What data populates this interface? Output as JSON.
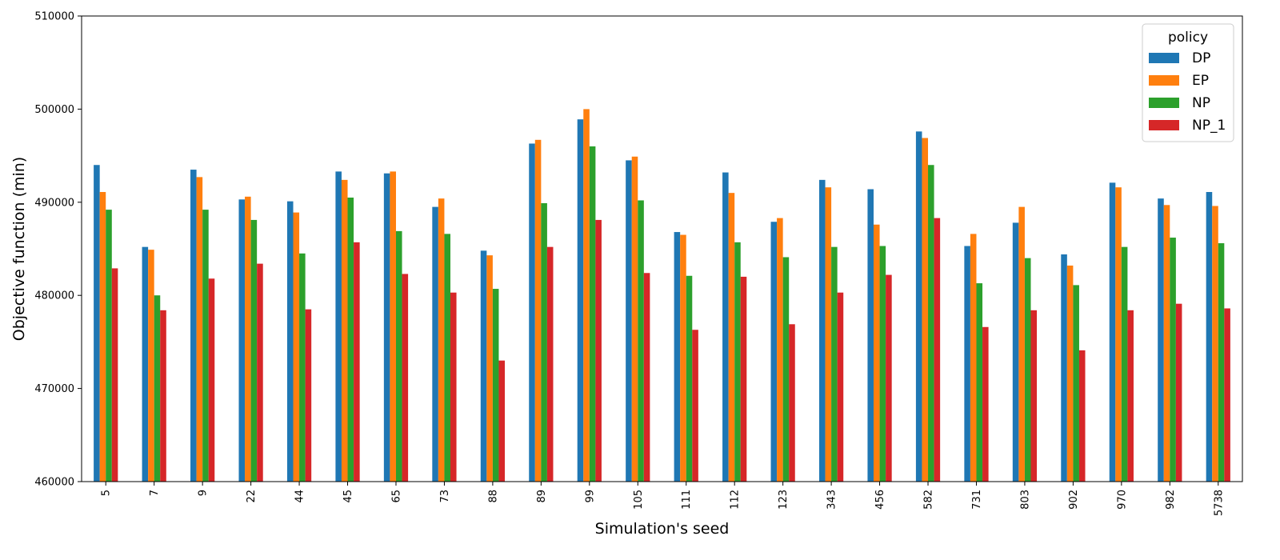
{
  "chart_data": {
    "type": "bar",
    "title": "",
    "xlabel": "Simulation's seed",
    "ylabel": "Objective function (min)",
    "ylim": [
      460000,
      510000
    ],
    "yticks": [
      460000,
      470000,
      480000,
      490000,
      500000,
      510000
    ],
    "grid": false,
    "legend": {
      "title": "policy",
      "placement": "top-right"
    },
    "categories": [
      "5",
      "7",
      "9",
      "22",
      "44",
      "45",
      "65",
      "73",
      "88",
      "89",
      "99",
      "105",
      "111",
      "112",
      "123",
      "343",
      "456",
      "582",
      "731",
      "803",
      "902",
      "970",
      "982",
      "5738"
    ],
    "series": [
      {
        "name": "DP",
        "color": "#1f77b4",
        "values": [
          494000,
          485200,
          493500,
          490300,
          490100,
          493300,
          493100,
          489500,
          484800,
          496300,
          498900,
          494500,
          486800,
          493200,
          487900,
          492400,
          491400,
          497600,
          485300,
          487800,
          484400,
          492100,
          490400,
          491100
        ]
      },
      {
        "name": "EP",
        "color": "#ff7f0e",
        "values": [
          491100,
          484900,
          492700,
          490600,
          488900,
          492400,
          493300,
          490400,
          484300,
          496700,
          500000,
          494900,
          486500,
          491000,
          488300,
          491600,
          487600,
          496900,
          486600,
          489500,
          483200,
          491600,
          489700,
          489600
        ]
      },
      {
        "name": "NP",
        "color": "#2ca02c",
        "values": [
          489200,
          480000,
          489200,
          488100,
          484500,
          490500,
          486900,
          486600,
          480700,
          489900,
          496000,
          490200,
          482100,
          485700,
          484100,
          485200,
          485300,
          494000,
          481300,
          484000,
          481100,
          485200,
          486200,
          485600
        ]
      },
      {
        "name": "NP_1",
        "color": "#d62728",
        "values": [
          482900,
          478400,
          481800,
          483400,
          478500,
          485700,
          482300,
          480300,
          473000,
          485200,
          488100,
          482400,
          476300,
          482000,
          476900,
          480300,
          482200,
          488300,
          476600,
          478400,
          474100,
          478400,
          479100,
          478600
        ]
      }
    ]
  }
}
